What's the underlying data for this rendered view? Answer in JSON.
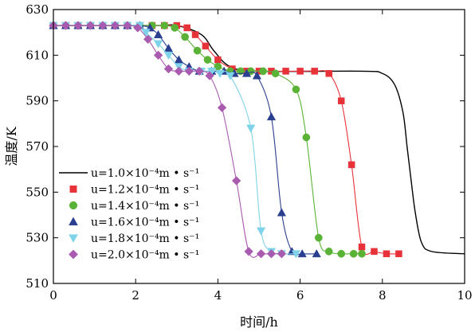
{
  "chart_data": {
    "type": "line",
    "title": "",
    "xlabel": "时间/h",
    "ylabel": "温度/K",
    "xlim": [
      0,
      10
    ],
    "ylim": [
      510,
      630
    ],
    "xticks": [
      "0",
      "2",
      "4",
      "6",
      "8",
      "10"
    ],
    "yticks": [
      "510",
      "530",
      "550",
      "570",
      "590",
      "610",
      "630"
    ],
    "grid": false,
    "legend_position": "lower-left",
    "series": [
      {
        "name": "u=1.0×10⁻⁴m • s⁻¹",
        "color": "#000000",
        "marker": "none",
        "x": [
          0,
          2.4,
          3.0,
          3.6,
          3.9,
          4.3,
          5.0,
          7.5,
          8.0,
          8.3,
          8.5,
          8.6,
          8.7,
          8.8,
          8.95,
          9.2,
          10
        ],
        "y": [
          623,
          623,
          623,
          619,
          612,
          605,
          603,
          603,
          602,
          597,
          585,
          570,
          555,
          541,
          528,
          524,
          523
        ]
      },
      {
        "name": "u=1.2×10⁻⁴m • s⁻¹",
        "color": "#e8323a",
        "marker": "square",
        "x": [
          0,
          0.3,
          0.6,
          0.9,
          1.2,
          1.5,
          1.8,
          2.1,
          2.4,
          2.7,
          3.0,
          3.25,
          3.45,
          3.7,
          4.0,
          4.35,
          4.7,
          5.0,
          5.3,
          5.65,
          6.0,
          6.35,
          6.7,
          7.0,
          7.25,
          7.5,
          7.8,
          8.1,
          8.4
        ],
        "y": [
          623,
          623,
          623,
          623,
          623,
          623,
          623,
          623,
          623,
          623,
          623,
          622,
          619,
          614,
          608,
          604,
          603,
          603,
          603,
          603,
          603,
          603,
          602,
          590,
          562,
          526,
          524,
          523,
          523
        ]
      },
      {
        "name": "u=1.4×10⁻⁴m • s⁻¹",
        "color": "#5ab236",
        "marker": "circle",
        "x": [
          0,
          0.3,
          0.6,
          0.9,
          1.2,
          1.5,
          1.8,
          2.1,
          2.4,
          2.7,
          2.95,
          3.2,
          3.5,
          3.75,
          4.0,
          4.3,
          4.55,
          4.8,
          5.1,
          5.4,
          5.9,
          6.15,
          6.45,
          6.7,
          7.0,
          7.3,
          7.5
        ],
        "y": [
          623,
          623,
          623,
          623,
          623,
          623,
          623,
          623,
          623,
          623,
          622,
          618,
          612,
          608,
          605,
          603,
          603,
          603,
          603,
          602,
          595,
          574,
          530,
          524,
          523,
          523,
          523
        ]
      },
      {
        "name": "u=1.6×10⁻⁴m • s⁻¹",
        "color": "#2a3f8f",
        "marker": "triangle-up",
        "x": [
          0,
          0.3,
          0.6,
          0.9,
          1.2,
          1.5,
          1.8,
          2.1,
          2.35,
          2.55,
          2.8,
          3.05,
          3.3,
          3.55,
          3.85,
          4.15,
          4.4,
          4.7,
          4.95,
          5.3,
          5.55,
          5.8,
          6.05,
          6.4
        ],
        "y": [
          623,
          623,
          623,
          623,
          623,
          623,
          623,
          623,
          622,
          619,
          613,
          608,
          605,
          603,
          603,
          603,
          602,
          602,
          601,
          583,
          541,
          524,
          523,
          523
        ]
      },
      {
        "name": "u=1.8×10⁻⁴m • s⁻¹",
        "color": "#7fd3e8",
        "marker": "triangle-down",
        "x": [
          0,
          0.3,
          0.6,
          0.9,
          1.2,
          1.5,
          1.8,
          2.1,
          2.25,
          2.55,
          2.8,
          3.05,
          3.3,
          3.6,
          3.85,
          4.05,
          4.3,
          4.8,
          5.05,
          5.3,
          5.55,
          5.9
        ],
        "y": [
          623,
          623,
          623,
          623,
          623,
          623,
          623,
          623,
          620,
          615,
          610,
          605,
          603,
          603,
          603,
          602,
          601,
          578,
          533,
          524,
          523,
          523
        ]
      },
      {
        "name": "u=2.0×10⁻⁴m • s⁻¹",
        "color": "#a95bb0",
        "marker": "diamond",
        "x": [
          0,
          0.3,
          0.6,
          0.9,
          1.2,
          1.5,
          1.8,
          2.05,
          2.3,
          2.55,
          2.8,
          3.05,
          3.3,
          3.55,
          3.8,
          4.1,
          4.45,
          4.75,
          5.05,
          5.3,
          5.55
        ],
        "y": [
          623,
          623,
          623,
          623,
          623,
          623,
          623,
          622,
          617,
          610,
          604,
          603,
          603,
          603,
          601,
          587,
          555,
          524,
          523,
          523,
          523
        ]
      }
    ]
  }
}
